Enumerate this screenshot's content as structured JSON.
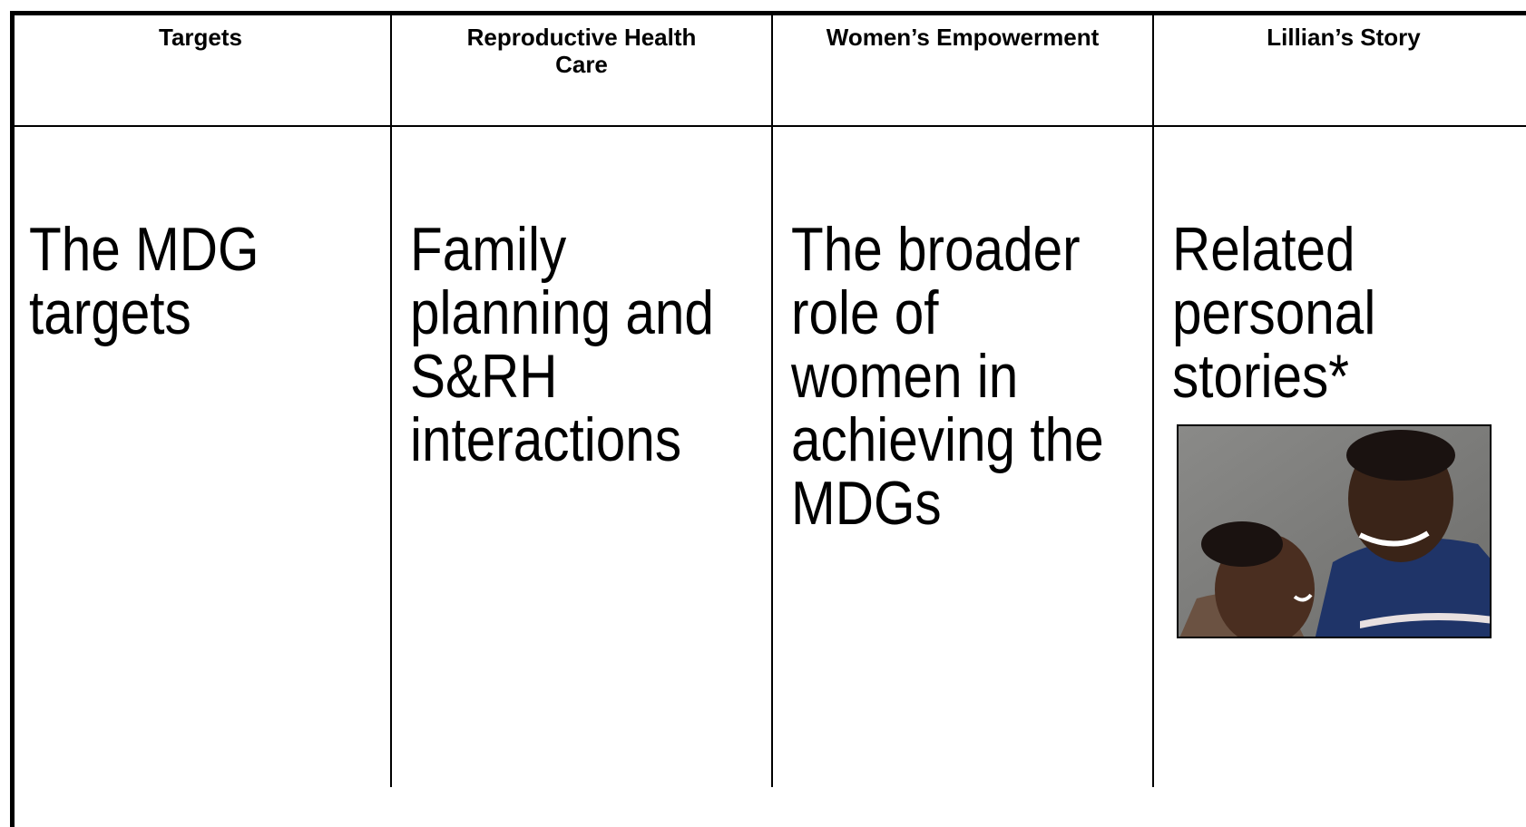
{
  "table": {
    "header": [
      [
        "Targets"
      ],
      [
        "Reproductive Health",
        "Care"
      ],
      [
        "Women’s Empowerment"
      ],
      [
        "Lillian’s Story"
      ]
    ],
    "body": [
      [
        "The MDG",
        "targets"
      ],
      [
        "Family",
        "planning and",
        "S&RH",
        "interactions"
      ],
      [
        "The broader",
        "role of",
        "women in",
        "achieving the",
        "MDGs"
      ],
      [
        "Related",
        "personal",
        "stories*"
      ]
    ]
  }
}
